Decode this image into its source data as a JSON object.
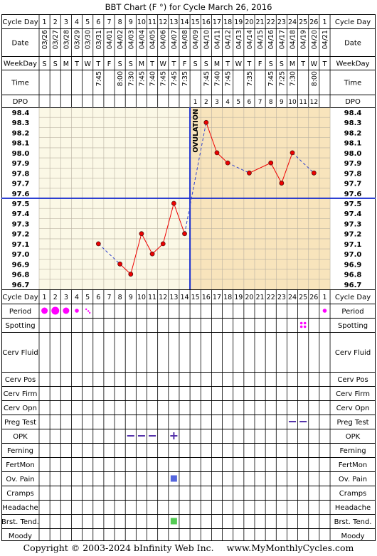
{
  "title": "BBT Chart (F °) for Cycle March 26, 2016",
  "labels": {
    "cycle_day": "Cycle Day",
    "date": "Date",
    "weekday": "WeekDay",
    "time": "Time",
    "dpo": "DPO",
    "ovulation": "OVULATION"
  },
  "columns": {
    "cycle_days": [
      "1",
      "2",
      "3",
      "4",
      "5",
      "6",
      "7",
      "8",
      "9",
      "10",
      "11",
      "12",
      "13",
      "14",
      "15",
      "16",
      "17",
      "18",
      "19",
      "20",
      "21",
      "22",
      "23",
      "24",
      "25",
      "26",
      "1"
    ],
    "dates": [
      "03/26",
      "03/27",
      "03/28",
      "03/29",
      "03/30",
      "03/31",
      "04/01",
      "04/02",
      "04/03",
      "04/04",
      "04/05",
      "04/06",
      "04/07",
      "04/08",
      "04/09",
      "04/10",
      "04/11",
      "04/12",
      "04/13",
      "04/14",
      "04/15",
      "04/16",
      "04/17",
      "04/18",
      "04/19",
      "04/20",
      "04/21"
    ],
    "weekdays": [
      "S",
      "S",
      "M",
      "T",
      "W",
      "T",
      "F",
      "S",
      "S",
      "M",
      "T",
      "W",
      "T",
      "F",
      "S",
      "S",
      "M",
      "T",
      "W",
      "T",
      "F",
      "S",
      "S",
      "M",
      "T",
      "W",
      "T"
    ],
    "times": [
      "",
      "",
      "",
      "",
      "",
      "7:45",
      "",
      "8:00",
      "7:30",
      "7:45",
      "7:40",
      "7:45",
      "7:45",
      "7:35",
      "",
      "7:45",
      "7:40",
      "7:45",
      "",
      "7:35",
      "",
      "7:45",
      "7:25",
      "7:30",
      "",
      "8:00",
      ""
    ],
    "dpo": [
      "",
      "",
      "",
      "",
      "",
      "",
      "",
      "",
      "",
      "",
      "",
      "",
      "",
      "",
      "1",
      "2",
      "3",
      "4",
      "5",
      "6",
      "7",
      "8",
      "9",
      "10",
      "11",
      "12",
      ""
    ]
  },
  "temp_ticks": [
    "98.4",
    "98.3",
    "98.2",
    "98.1",
    "98.0",
    "97.9",
    "97.8",
    "97.7",
    "97.6",
    "97.5",
    "97.4",
    "97.3",
    "97.2",
    "97.1",
    "97.0",
    "96.9",
    "96.8",
    "96.7"
  ],
  "chart_data": {
    "type": "line",
    "title": "BBT Chart (F °) for Cycle March 26, 2016",
    "x_label": "Cycle Day",
    "y_label": "",
    "y_unit": "F",
    "ylim": [
      96.7,
      98.4
    ],
    "y_step": 0.1,
    "x_days": [
      6,
      8,
      9,
      10,
      11,
      12,
      13,
      14,
      16,
      17,
      18,
      20,
      22,
      23,
      24,
      26
    ],
    "y_temps": [
      97.1,
      96.9,
      96.8,
      97.2,
      97.0,
      97.1,
      97.5,
      97.2,
      98.3,
      98.0,
      97.9,
      97.8,
      97.9,
      97.7,
      98.0,
      97.8
    ],
    "segments": [
      {
        "from_day": 6,
        "to_day": 8,
        "style": "dashed"
      },
      {
        "from_day": 8,
        "to_day": 14,
        "style": "solid"
      },
      {
        "from_day": 14,
        "to_day": 16,
        "style": "dashed"
      },
      {
        "from_day": 16,
        "to_day": 18,
        "style": "solid"
      },
      {
        "from_day": 18,
        "to_day": 20,
        "style": "dashed"
      },
      {
        "from_day": 20,
        "to_day": 24,
        "style": "solid"
      },
      {
        "from_day": 24,
        "to_day": 26,
        "style": "dashed"
      }
    ],
    "coverline": 97.6,
    "ovulation_day": 14,
    "grid": true
  },
  "symptoms": [
    {
      "label": "Period",
      "marks": [
        {
          "day": 1,
          "kind": "dot",
          "level": 2
        },
        {
          "day": 2,
          "kind": "dot",
          "level": 3
        },
        {
          "day": 3,
          "kind": "dot",
          "level": 2
        },
        {
          "day": 4,
          "kind": "dot",
          "level": 1
        },
        {
          "day": 5,
          "kind": "spots"
        },
        {
          "day": 27,
          "kind": "dot",
          "level": 1
        }
      ]
    },
    {
      "label": "Spotting",
      "marks": [
        {
          "day": 25,
          "kind": "quad"
        }
      ]
    },
    {
      "label": "Cerv Fluid",
      "marks": []
    },
    {
      "label": "Cerv Pos",
      "marks": []
    },
    {
      "label": "Cerv Firm",
      "marks": []
    },
    {
      "label": "Cerv Opn",
      "marks": []
    },
    {
      "label": "Preg Test",
      "marks": [
        {
          "day": 24,
          "kind": "dash"
        },
        {
          "day": 25,
          "kind": "dash"
        }
      ]
    },
    {
      "label": "OPK",
      "marks": [
        {
          "day": 9,
          "kind": "dash"
        },
        {
          "day": 10,
          "kind": "dash"
        },
        {
          "day": 11,
          "kind": "dash"
        },
        {
          "day": 13,
          "kind": "plus"
        }
      ]
    },
    {
      "label": "Ferning",
      "marks": []
    },
    {
      "label": "FertMon",
      "marks": []
    },
    {
      "label": "Ov. Pain",
      "marks": [
        {
          "day": 13,
          "kind": "square-blue"
        }
      ]
    },
    {
      "label": "Cramps",
      "marks": []
    },
    {
      "label": "Headache",
      "marks": []
    },
    {
      "label": "Brst. Tend.",
      "marks": [
        {
          "day": 13,
          "kind": "square-green"
        }
      ]
    },
    {
      "label": "Moody",
      "marks": []
    }
  ],
  "colors": {
    "pre_ovulation_bg": "#fbf8e6",
    "post_ovulation_bg": "#f8e4bc",
    "line": "#ee0000",
    "dash_line": "#3344cc",
    "coverline": "#1a2fcf",
    "period": "#ff00ff",
    "opk": "#5533aa",
    "ov_pain": "#5566dd",
    "brst_tend": "#55cc55"
  },
  "copyright": "Copyright © 2003-2024 bInfinity Web Inc.",
  "website": "www.MyMonthlyCycles.com"
}
